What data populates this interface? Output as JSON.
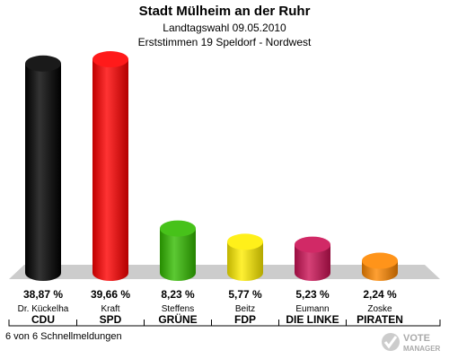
{
  "header": {
    "title": "Stadt Mülheim an der Ruhr",
    "subtitle": "Landtagswahl 09.05.2010",
    "subtitle2": "Erststimmen 19 Speldorf - Nordwest"
  },
  "chart_data": {
    "type": "bar",
    "title": "Stadt Mülheim an der Ruhr",
    "candidates": [
      "Dr. Kückelha",
      "Kraft",
      "Steffens",
      "Beitz",
      "Eumann",
      "Zoske"
    ],
    "categories": [
      "CDU",
      "SPD",
      "GRÜNE",
      "FDP",
      "DIE LINKE",
      "PIRATEN"
    ],
    "values": [
      38.87,
      39.66,
      8.23,
      5.77,
      5.23,
      2.24
    ],
    "value_labels": [
      "38,87 %",
      "39,66 %",
      "8,23 %",
      "5,77 %",
      "5,23 %",
      "2,24 %"
    ],
    "colors": [
      "#000000",
      "#ff0000",
      "#33bb00",
      "#ffee00",
      "#cc1155",
      "#ff8800"
    ],
    "ylim": [
      0,
      40
    ],
    "grid": false
  },
  "footer": {
    "text": "6 von 6 Schnellmeldungen"
  },
  "logo": {
    "line1": "VOTE",
    "line2": "MANAGER"
  }
}
